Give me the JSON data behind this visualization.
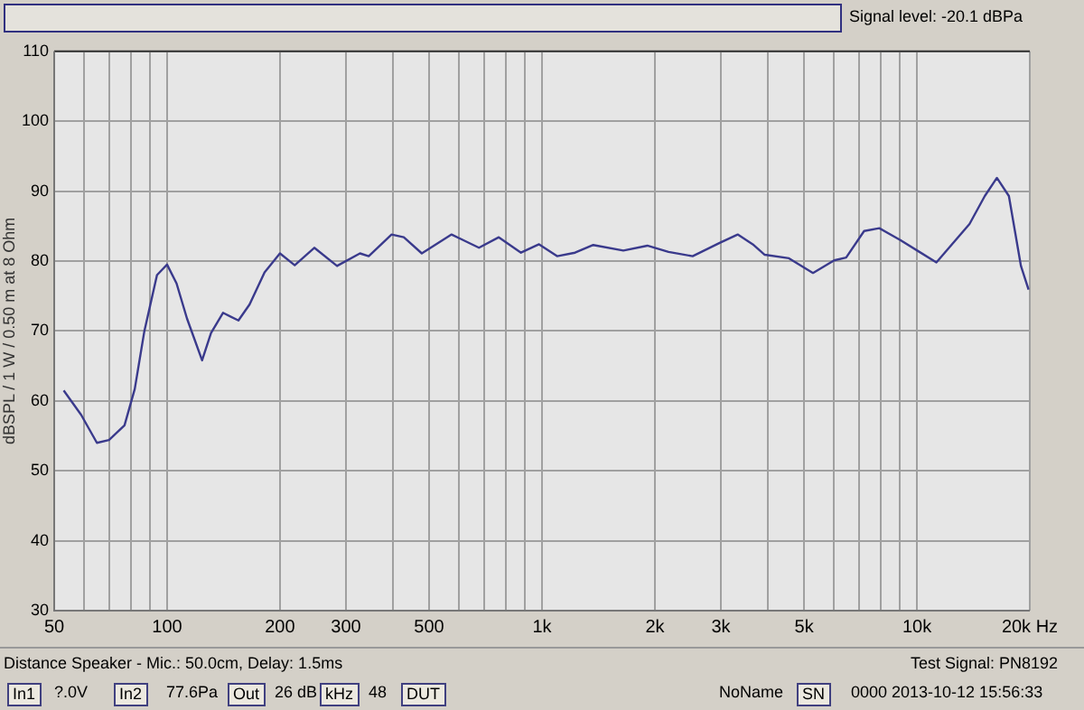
{
  "chart_data": {
    "type": "line",
    "ylabel": "dBSPL / 1 W / 0.50 m at 8 Ohm",
    "log": "x",
    "grid": true,
    "marker": "none",
    "line_style": "solid",
    "legend": false,
    "xlim": [
      50,
      20000
    ],
    "ylim": [
      30,
      110
    ],
    "xticks": [
      {
        "value": 50,
        "label": "50"
      },
      {
        "value": 60,
        "label": null
      },
      {
        "value": 70,
        "label": null
      },
      {
        "value": 80,
        "label": null
      },
      {
        "value": 90,
        "label": null
      },
      {
        "value": 100,
        "label": "100"
      },
      {
        "value": 200,
        "label": "200"
      },
      {
        "value": 300,
        "label": "300"
      },
      {
        "value": 400,
        "label": null
      },
      {
        "value": 500,
        "label": "500"
      },
      {
        "value": 600,
        "label": null
      },
      {
        "value": 700,
        "label": null
      },
      {
        "value": 800,
        "label": null
      },
      {
        "value": 900,
        "label": null
      },
      {
        "value": 1000,
        "label": "1k"
      },
      {
        "value": 2000,
        "label": "2k"
      },
      {
        "value": 3000,
        "label": "3k"
      },
      {
        "value": 4000,
        "label": null
      },
      {
        "value": 5000,
        "label": "5k"
      },
      {
        "value": 6000,
        "label": null
      },
      {
        "value": 7000,
        "label": null
      },
      {
        "value": 8000,
        "label": null
      },
      {
        "value": 9000,
        "label": null
      },
      {
        "value": 10000,
        "label": "10k"
      },
      {
        "value": 20000,
        "label": "20k Hz"
      }
    ],
    "yticks": [
      30,
      40,
      50,
      60,
      70,
      80,
      90,
      100,
      110
    ],
    "series": [
      {
        "color": "#3a3a8c",
        "x": [
          53,
          59,
          65,
          70,
          77,
          82,
          87,
          94,
          100,
          106,
          113,
          124,
          131,
          141,
          155,
          166,
          182,
          200,
          219,
          247,
          284,
          327,
          345,
          397,
          428,
          478,
          574,
          679,
          767,
          879,
          982,
          1097,
          1225,
          1370,
          1648,
          1910,
          2175,
          2522,
          2978,
          3326,
          3648,
          3927,
          4557,
          5282,
          6014,
          6474,
          7230,
          7936,
          9028,
          11270,
          13810,
          15170,
          16340,
          17590,
          18940,
          19850
        ],
        "values": [
          61.5,
          58,
          54,
          54.4,
          56.5,
          61.7,
          70,
          78,
          79.5,
          76.8,
          71.8,
          65.8,
          69.7,
          72.6,
          71.5,
          73.8,
          78.4,
          81.1,
          79.4,
          81.9,
          79.3,
          81.1,
          80.7,
          83.8,
          83.4,
          81.1,
          83.8,
          81.9,
          83.4,
          81.2,
          82.4,
          80.7,
          81.2,
          82.3,
          81.5,
          82.2,
          81.3,
          80.7,
          82.6,
          83.8,
          82.4,
          80.9,
          80.4,
          78.3,
          80.1,
          80.5,
          84.3,
          84.7,
          83,
          79.8,
          85.3,
          89.3,
          91.9,
          89.3,
          79.3,
          75.9
        ]
      }
    ],
    "annotations": [
      "Signal level: -20.1 dBPa",
      "Distance Speaker - Mic.: 50.0cm, Delay: 1.5ms",
      "Test Signal: PN8192",
      "In1",
      "?.0V",
      "In2",
      "77.6Pa",
      "Out",
      "26 dB",
      "kHz",
      "48",
      "DUT",
      "NoName",
      "SN",
      "0000 2013-10-12 15:56:33"
    ]
  }
}
